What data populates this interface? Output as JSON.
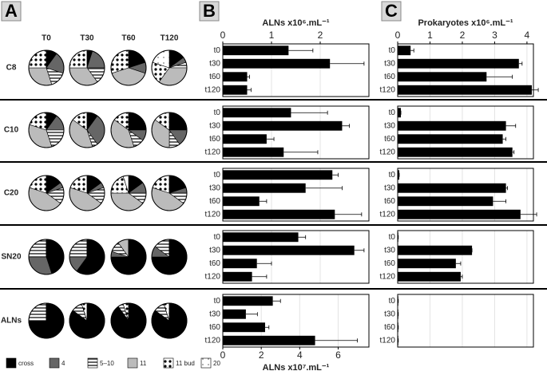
{
  "panels": [
    "A",
    "B",
    "C"
  ],
  "chart_data": [
    {
      "type": "pie-grid",
      "columns": [
        "T0",
        "T30",
        "T60",
        "T120"
      ],
      "categories": [
        "cross",
        "4",
        "5–10",
        "11",
        "11 bud",
        "20"
      ],
      "colors": [
        "#000000",
        "#666666",
        "#ffffff",
        "#bbbbbb",
        "#ffffff",
        "#ffffff"
      ],
      "patterns": [
        "none",
        "none",
        "stripes",
        "none",
        "dots",
        "sparse-dots"
      ],
      "rows": [
        {
          "name": "C8",
          "values": [
            [
              10,
              20,
              15,
              30,
              25,
              0
            ],
            [
              5,
              20,
              15,
              35,
              25,
              0
            ],
            [
              20,
              10,
              0,
              40,
              30,
              0
            ],
            [
              15,
              5,
              5,
              35,
              20,
              20
            ]
          ]
        },
        {
          "name": "C10",
          "values": [
            [
              10,
              15,
              20,
              35,
              20,
              0
            ],
            [
              10,
              30,
              5,
              40,
              15,
              0
            ],
            [
              25,
              10,
              10,
              40,
              15,
              0
            ],
            [
              25,
              15,
              10,
              35,
              15,
              0
            ]
          ]
        },
        {
          "name": "C20",
          "values": [
            [
              15,
              5,
              15,
              45,
              20,
              0
            ],
            [
              15,
              5,
              15,
              45,
              20,
              0
            ],
            [
              15,
              10,
              10,
              40,
              20,
              5
            ],
            [
              20,
              5,
              10,
              45,
              20,
              0
            ]
          ]
        },
        {
          "name": "SN20",
          "values": [
            [
              45,
              30,
              25,
              0,
              0,
              0
            ],
            [
              60,
              15,
              25,
              0,
              0,
              0
            ],
            [
              75,
              5,
              10,
              10,
              0,
              0
            ],
            [
              75,
              10,
              15,
              0,
              0,
              0
            ]
          ]
        },
        {
          "name": "ALNs",
          "values": [
            [
              75,
              0,
              25,
              0,
              0,
              0
            ],
            [
              85,
              0,
              10,
              0,
              5,
              0
            ],
            [
              90,
              0,
              5,
              0,
              5,
              0
            ],
            [
              85,
              0,
              10,
              0,
              5,
              0
            ]
          ]
        }
      ]
    },
    {
      "type": "bar",
      "xlabel": "ALNs x10⁶.mL⁻¹",
      "tick_labels": "top",
      "categories": [
        "t0",
        "t30",
        "t60",
        "t120"
      ],
      "values": [
        1.35,
        2.2,
        0.5,
        0.5
      ],
      "errors": [
        0.5,
        0.7,
        0.05,
        0.08
      ],
      "xlim": [
        0,
        3
      ],
      "xticks": [
        0,
        1,
        2
      ],
      "color": "#000000"
    },
    {
      "type": "bar",
      "tick_labels": "none",
      "categories": [
        "t0",
        "t30",
        "t60",
        "t120"
      ],
      "values": [
        1.4,
        2.45,
        0.9,
        1.25
      ],
      "errors": [
        0.75,
        0.15,
        0.15,
        0.7
      ],
      "xlim": [
        0,
        3
      ],
      "xticks": [
        0,
        1,
        2
      ],
      "color": "#000000"
    },
    {
      "type": "bar",
      "tick_labels": "none",
      "categories": [
        "t0",
        "t30",
        "t60",
        "t120"
      ],
      "values": [
        2.25,
        1.7,
        0.75,
        2.3
      ],
      "errors": [
        0.12,
        0.75,
        0.15,
        0.55
      ],
      "xlim": [
        0,
        3
      ],
      "xticks": [
        0,
        1,
        2
      ],
      "color": "#000000"
    },
    {
      "type": "bar",
      "tick_labels": "none",
      "categories": [
        "t0",
        "t30",
        "t60",
        "t120"
      ],
      "values": [
        1.55,
        2.7,
        0.7,
        0.6
      ],
      "errors": [
        0.15,
        0.2,
        0.3,
        0.3
      ],
      "xlim": [
        0,
        3
      ],
      "xticks": [
        0,
        1,
        2
      ],
      "color": "#000000"
    },
    {
      "type": "bar",
      "xlabel": "ALNs x10⁷.mL⁻¹",
      "tick_labels": "bottom",
      "categories": [
        "t0",
        "t30",
        "t60",
        "t120"
      ],
      "values": [
        2.6,
        1.2,
        2.2,
        4.8
      ],
      "errors": [
        0.4,
        0.6,
        0.2,
        2.2
      ],
      "xlim": [
        0,
        7.6
      ],
      "xticks": [
        0,
        2,
        4,
        6
      ],
      "color": "#000000"
    },
    {
      "type": "bar",
      "xlabel": "Prokaryotes x10⁶.mL⁻¹",
      "tick_labels": "top",
      "categories": [
        "t0",
        "t30",
        "t60",
        "t120"
      ],
      "values": [
        0.4,
        3.75,
        2.75,
        4.15
      ],
      "errors": [
        0.1,
        0.1,
        0.8,
        0.2
      ],
      "xlim": [
        0,
        4.2
      ],
      "xticks": [
        0,
        1,
        2,
        3,
        4
      ],
      "color": "#000000"
    },
    {
      "type": "bar",
      "tick_labels": "none",
      "categories": [
        "t0",
        "t30",
        "t60",
        "t120"
      ],
      "values": [
        0.1,
        3.35,
        3.25,
        3.55
      ],
      "errors": [
        0,
        0.3,
        0.1,
        0.05
      ],
      "xlim": [
        0,
        4.2
      ],
      "xticks": [
        0,
        1,
        2,
        3,
        4
      ],
      "color": "#000000"
    },
    {
      "type": "bar",
      "tick_labels": "none",
      "categories": [
        "t0",
        "t30",
        "t60",
        "t120"
      ],
      "values": [
        0.05,
        3.35,
        2.95,
        3.8
      ],
      "errors": [
        0,
        0.05,
        0.4,
        0.5
      ],
      "xlim": [
        0,
        4.2
      ],
      "xticks": [
        0,
        1,
        2,
        3,
        4
      ],
      "color": "#000000"
    },
    {
      "type": "bar",
      "tick_labels": "none",
      "categories": [
        "t0",
        "t30",
        "t60",
        "t120"
      ],
      "values": [
        0.02,
        2.3,
        1.8,
        1.95
      ],
      "errors": [
        0,
        0,
        0.15,
        0.05
      ],
      "xlim": [
        0,
        4.2
      ],
      "xticks": [
        0,
        1,
        2,
        3,
        4
      ],
      "color": "#000000"
    },
    {
      "type": "bar",
      "tick_labels": "none",
      "categories": [
        "t0",
        "t30",
        "t60",
        "t120"
      ],
      "values": [
        0.02,
        0.02,
        0.02,
        0.02
      ],
      "errors": [
        0,
        0,
        0,
        0
      ],
      "xlim": [
        0,
        4.2
      ],
      "xticks": [
        0,
        1,
        2,
        3,
        4
      ],
      "color": "#000000"
    }
  ]
}
